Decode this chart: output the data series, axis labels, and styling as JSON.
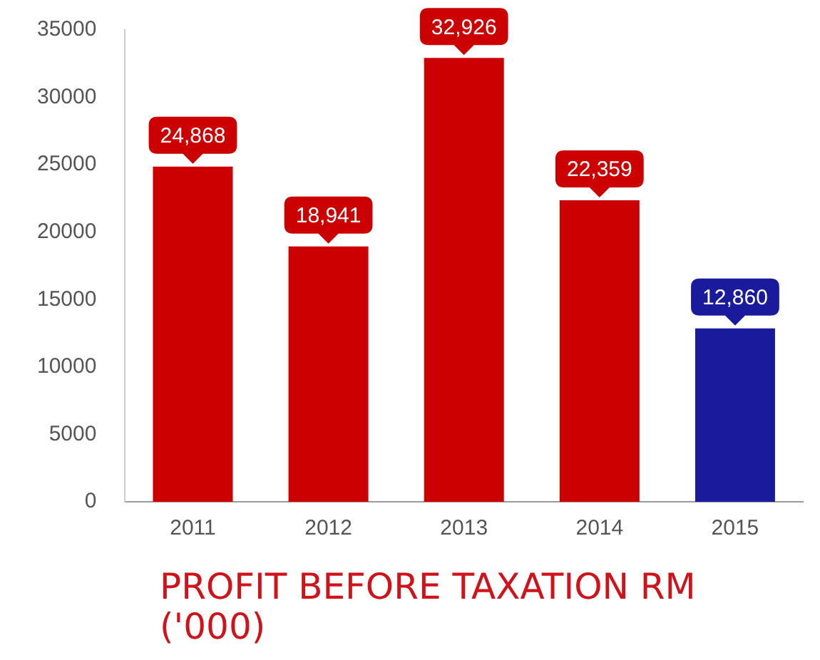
{
  "chart_data": {
    "type": "bar",
    "title": "PROFIT BEFORE TAXATION RM ('000)",
    "categories": [
      "2011",
      "2012",
      "2013",
      "2014",
      "2015"
    ],
    "values": [
      24868,
      18941,
      32926,
      22359,
      12860
    ],
    "colors": [
      "#cc0000",
      "#cc0000",
      "#cc0000",
      "#cc0000",
      "#1a1a9c"
    ],
    "value_labels": [
      "24,868",
      "18,941",
      "32,926",
      "22,359",
      "12,860"
    ],
    "ylim": [
      0,
      35000
    ],
    "yticks": [
      0,
      5000,
      10000,
      15000,
      20000,
      25000,
      30000,
      35000
    ],
    "grid": false,
    "legend": false
  }
}
